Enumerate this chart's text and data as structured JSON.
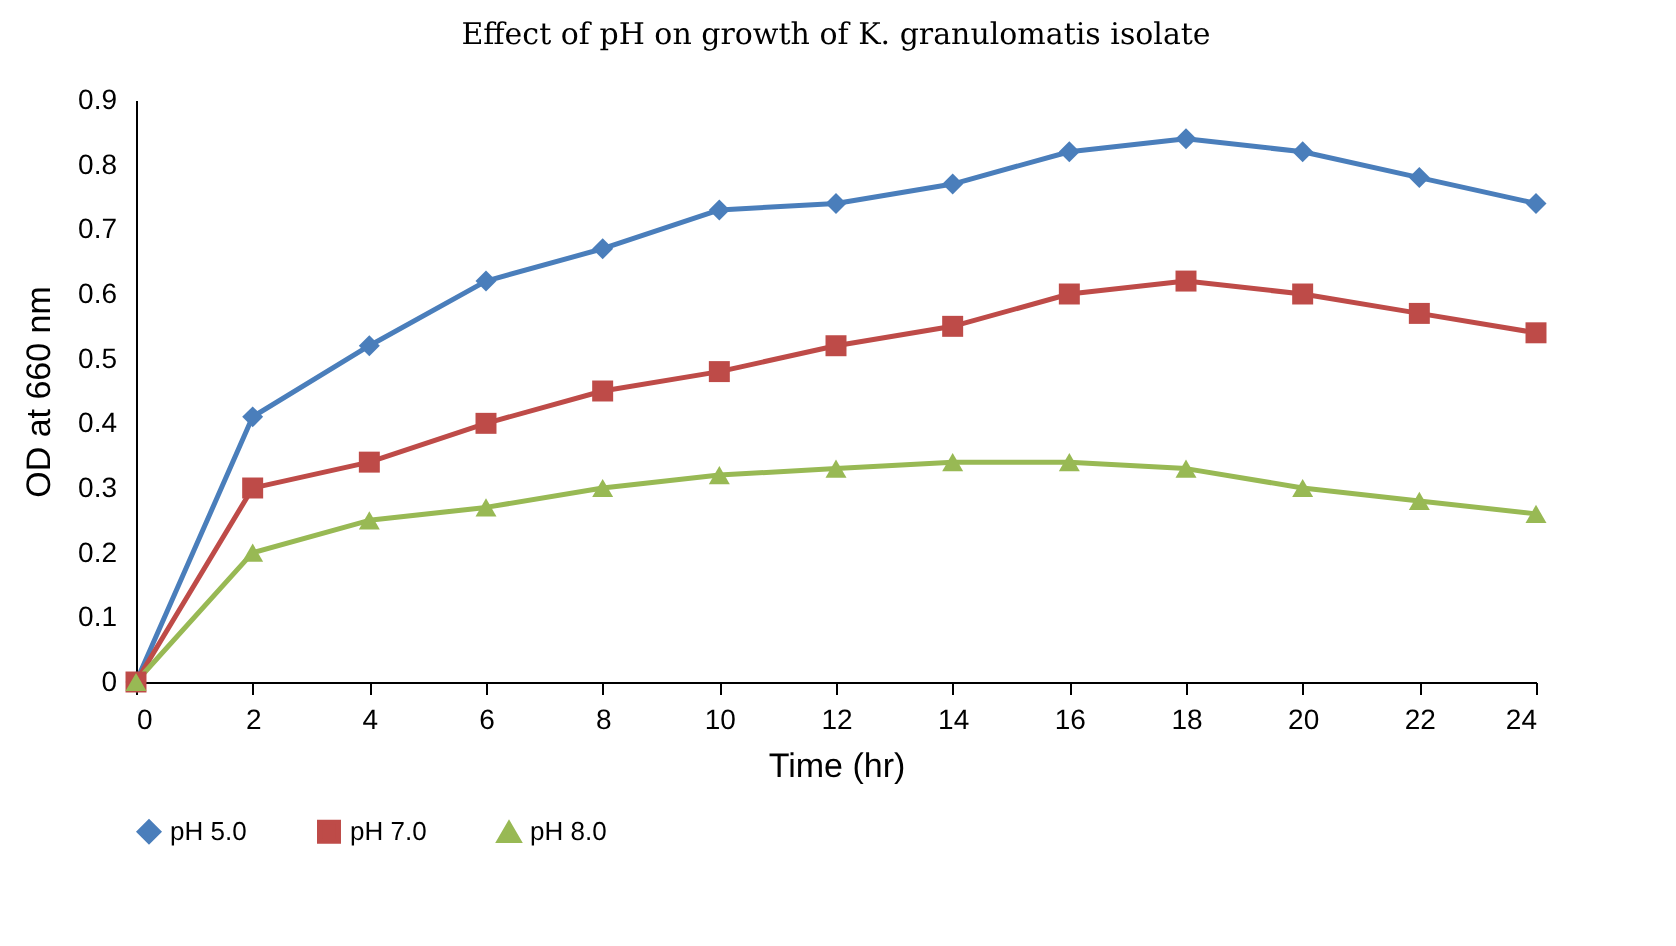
{
  "chart_data": {
    "type": "line",
    "title": "Effect of pH on growth of K. granulomatis isolate",
    "xlabel": "Time (hr)",
    "ylabel": "OD at 660 nm",
    "x": [
      0,
      2,
      4,
      6,
      8,
      10,
      12,
      14,
      16,
      18,
      20,
      22,
      24
    ],
    "series": [
      {
        "name": "pH 5.0",
        "color": "#4a7ebb",
        "marker": "diamond",
        "values": [
          0,
          0.41,
          0.52,
          0.62,
          0.67,
          0.73,
          0.74,
          0.77,
          0.82,
          0.84,
          0.82,
          0.78,
          0.74
        ]
      },
      {
        "name": "pH 7.0",
        "color": "#be4b48",
        "marker": "square",
        "values": [
          0,
          0.3,
          0.34,
          0.4,
          0.45,
          0.48,
          0.52,
          0.55,
          0.6,
          0.62,
          0.6,
          0.57,
          0.54
        ]
      },
      {
        "name": "pH 8.0",
        "color": "#98b954",
        "marker": "triangle",
        "values": [
          0,
          0.2,
          0.25,
          0.27,
          0.3,
          0.32,
          0.33,
          0.34,
          0.34,
          0.33,
          0.3,
          0.28,
          0.26
        ]
      }
    ],
    "xlim": [
      0,
      24
    ],
    "xticks": [
      0,
      2,
      4,
      6,
      8,
      10,
      12,
      14,
      16,
      18,
      20,
      22,
      24
    ],
    "ylim": [
      0,
      0.9
    ],
    "yticks": [
      0,
      0.1,
      0.2,
      0.3,
      0.4,
      0.5,
      0.6,
      0.7,
      0.8,
      0.9
    ],
    "legend": "bottom"
  }
}
